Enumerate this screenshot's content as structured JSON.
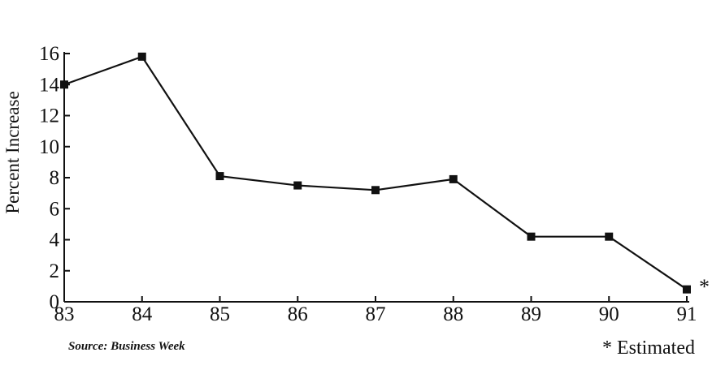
{
  "chart_data": {
    "type": "line",
    "title": "",
    "xlabel": "",
    "ylabel": "Percent Increase",
    "x": [
      "83",
      "84",
      "85",
      "86",
      "87",
      "88",
      "89",
      "90",
      "91"
    ],
    "series": [
      {
        "values": [
          14,
          15.8,
          8.1,
          7.5,
          7.2,
          7.9,
          4.2,
          4.2,
          0.8
        ]
      }
    ],
    "ylim": [
      0,
      16
    ],
    "yticks": [
      0,
      2,
      4,
      6,
      8,
      10,
      12,
      14,
      16
    ],
    "grid": false,
    "source": "Source:  Business Week",
    "footnote": "* Estimated",
    "estimated_marker": "*"
  }
}
